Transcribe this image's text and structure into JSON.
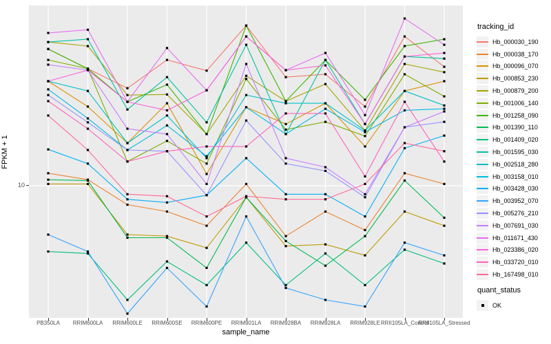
{
  "figure": {
    "background": "#FFFFFF",
    "panel_background": "#EBEBEB",
    "grid_color": "#FFFFFF",
    "tick_text_color": "#4D4D4D",
    "axis_title_color": "#000000",
    "legend_key_background": "#F2F2F2",
    "point_color": "#000000"
  },
  "chart_data": {
    "type": "line",
    "title": "",
    "xlabel": "sample_name",
    "ylabel": "FPKM + 1",
    "y_scale": "log10",
    "y_tick_labels": [
      "10"
    ],
    "y_tick_values": [
      10
    ],
    "ylim": [
      2.3,
      75
    ],
    "grid": true,
    "legend_position": "right",
    "legend_title": "tracking_id",
    "point_marker": "black-square",
    "categories": [
      "PB350LA",
      "RRIM600LA",
      "RRIM600LE",
      "RRIM600SE",
      "RRIM600PE",
      "RRIM901LA",
      "RRIM928BA",
      "RRIM928LA",
      "RRIM928LE",
      "RRII105LA_Control",
      "RRII105LA_Stressed"
    ],
    "series": [
      {
        "name": "Hb_000030_190",
        "color": "#F8766D",
        "values": [
          46.0,
          36.9,
          29.7,
          40.7,
          36.1,
          59.7,
          33.6,
          34.7,
          24.2,
          52.9,
          37.7
        ]
      },
      {
        "name": "Hb_000038_170",
        "color": "#EA8331",
        "values": [
          11.5,
          10.7,
          8.1,
          7.5,
          6.4,
          10.2,
          5.7,
          7.5,
          6.1,
          11.5,
          10.2
        ]
      },
      {
        "name": "Hb_000096_070",
        "color": "#D89000",
        "values": [
          32.1,
          24.2,
          16.1,
          25.1,
          11.4,
          24.0,
          19.9,
          25.1,
          15.5,
          28.8,
          32.1
        ]
      },
      {
        "name": "Hb_000853_230",
        "color": "#C09B00",
        "values": [
          10.2,
          10.2,
          5.8,
          5.7,
          5.0,
          8.8,
          5.1,
          5.2,
          4.6,
          7.5,
          6.4
        ]
      },
      {
        "name": "Hb_000879_200",
        "color": "#A3A500",
        "values": [
          49.7,
          47.5,
          27.5,
          27.7,
          17.8,
          34.1,
          25.7,
          31.1,
          18.5,
          38.9,
          35.5
        ]
      },
      {
        "name": "Hb_001006_140",
        "color": "#7CAE00",
        "values": [
          40.7,
          36.9,
          13.1,
          16.5,
          12.8,
          32.9,
          18.7,
          20.4,
          17.4,
          34.7,
          27.1
        ]
      },
      {
        "name": "Hb_001258_090",
        "color": "#39B600",
        "values": [
          46.0,
          36.9,
          25.5,
          30.9,
          17.8,
          59.7,
          25.7,
          40.7,
          26.1,
          47.5,
          51.3
        ]
      },
      {
        "name": "Hb_001390_110",
        "color": "#00BB4E",
        "values": [
          10.7,
          10.6,
          5.6,
          5.6,
          4.0,
          8.8,
          5.4,
          4.1,
          5.7,
          10.6,
          7.0
        ]
      },
      {
        "name": "Hb_001409_020",
        "color": "#00BF7D",
        "values": [
          4.8,
          4.7,
          2.8,
          4.3,
          3.3,
          5.3,
          3.3,
          4.7,
          3.3,
          4.9,
          4.2
        ]
      },
      {
        "name": "Hb_001595_030",
        "color": "#00C1A3",
        "values": [
          49.7,
          51.3,
          23.4,
          33.6,
          20.3,
          48.2,
          17.8,
          40.7,
          19.9,
          42.3,
          41.3
        ]
      },
      {
        "name": "Hb_002518_280",
        "color": "#00BFC4",
        "values": [
          32.1,
          28.8,
          16.1,
          21.9,
          13.6,
          27.5,
          25.1,
          25.1,
          18.5,
          28.8,
          24.5
        ]
      },
      {
        "name": "Hb_003158_010",
        "color": "#00BAE0",
        "values": [
          29.3,
          21.2,
          14.9,
          19.6,
          13.9,
          24.0,
          17.8,
          23.6,
          18.2,
          23.2,
          23.6
        ]
      },
      {
        "name": "Hb_003428_030",
        "color": "#00B0F6",
        "values": [
          15.0,
          12.8,
          8.6,
          8.3,
          9.0,
          13.6,
          9.1,
          9.1,
          7.1,
          15.2,
          17.5
        ]
      },
      {
        "name": "Hb_003952_070",
        "color": "#35A2FF",
        "values": [
          5.8,
          4.8,
          2.4,
          4.0,
          2.6,
          7.1,
          3.2,
          2.8,
          2.6,
          5.3,
          4.6
        ]
      },
      {
        "name": "Hb_005276_210",
        "color": "#9590FF",
        "values": [
          27.5,
          20.3,
          14.9,
          14.7,
          9.0,
          20.7,
          12.8,
          11.8,
          8.8,
          19.2,
          20.4
        ]
      },
      {
        "name": "Hb_007691_030",
        "color": "#C77CFF",
        "values": [
          38.6,
          36.3,
          18.9,
          17.8,
          10.2,
          38.9,
          13.6,
          12.3,
          9.1,
          19.2,
          22.9
        ]
      },
      {
        "name": "Hb_011671_430",
        "color": "#E76BF3",
        "values": [
          55.0,
          57.0,
          25.5,
          46.5,
          29.0,
          52.9,
          36.3,
          44.0,
          22.0,
          64.6,
          48.2
        ]
      },
      {
        "name": "Hb_023386_020",
        "color": "#FA62DB",
        "values": [
          32.1,
          36.3,
          25.5,
          23.2,
          29.0,
          52.9,
          36.3,
          38.3,
          19.9,
          42.3,
          44.0
        ]
      },
      {
        "name": "Hb_033720_010",
        "color": "#FF62BC",
        "values": [
          25.7,
          18.9,
          13.1,
          14.7,
          15.5,
          15.5,
          22.4,
          22.4,
          11.1,
          25.5,
          13.1
        ]
      },
      {
        "name": "Hb_167498_010",
        "color": "#FF6A98",
        "values": [
          21.9,
          14.9,
          9.1,
          8.9,
          7.1,
          8.9,
          8.6,
          8.6,
          10.2,
          16.1,
          14.7
        ]
      }
    ],
    "quant_legend": {
      "title": "quant_status",
      "items": [
        {
          "label": "OK",
          "marker": "black-square"
        }
      ]
    }
  }
}
